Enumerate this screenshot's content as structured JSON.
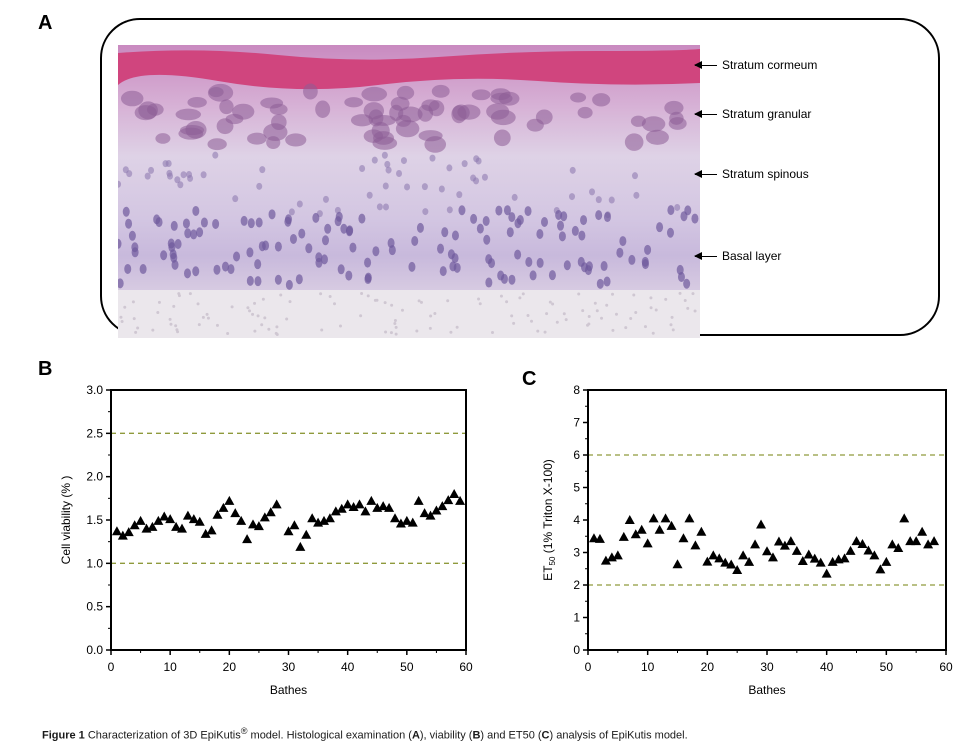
{
  "panel_a": {
    "label": "A",
    "layers": [
      "Stratum cormeum",
      "Stratum granular",
      "Stratum spinous",
      "Basal layer"
    ]
  },
  "caption": {
    "figure": "Figure 1",
    "text1": " Characterization of 3D EpiKutis",
    "reg": "®",
    "text2": " model. Histological examination (",
    "a": "A",
    "text3": "), viability (",
    "b": "B",
    "text4": ") and ET50 (",
    "c": "C",
    "text5": ") analysis of EpiKutis model."
  },
  "colors": {
    "reference_line": "#8f9a3c",
    "marker": "#000000",
    "cornified": "#d0457e"
  },
  "chart_data": [
    {
      "panel": "B",
      "type": "scatter",
      "marker": "triangle",
      "xlabel": "Bathes",
      "ylabel": "Cell viability (% )",
      "xlim": [
        0,
        60
      ],
      "ylim": [
        0,
        3.0
      ],
      "xticks": [
        "0",
        "10",
        "20",
        "30",
        "40",
        "50",
        "60"
      ],
      "yticks": [
        "0.0",
        "0.5",
        "1.0",
        "1.5",
        "2.0",
        "2.5",
        "3.0"
      ],
      "reference_lines": [
        1.0,
        2.5
      ],
      "grid": false,
      "x": [
        1,
        2,
        3,
        4,
        5,
        6,
        7,
        8,
        9,
        10,
        11,
        12,
        13,
        14,
        15,
        16,
        17,
        18,
        19,
        20,
        21,
        22,
        23,
        24,
        25,
        26,
        27,
        28,
        30,
        31,
        32,
        33,
        34,
        35,
        36,
        37,
        38,
        39,
        40,
        41,
        42,
        43,
        44,
        45,
        46,
        47,
        48,
        49,
        50,
        51,
        52,
        53,
        54,
        55,
        56,
        57,
        58,
        59
      ],
      "y": [
        1.37,
        1.32,
        1.36,
        1.44,
        1.49,
        1.4,
        1.42,
        1.49,
        1.54,
        1.51,
        1.42,
        1.4,
        1.55,
        1.51,
        1.48,
        1.34,
        1.38,
        1.56,
        1.64,
        1.72,
        1.58,
        1.49,
        1.28,
        1.45,
        1.43,
        1.53,
        1.59,
        1.68,
        1.37,
        1.44,
        1.19,
        1.33,
        1.52,
        1.47,
        1.49,
        1.52,
        1.6,
        1.63,
        1.68,
        1.65,
        1.68,
        1.6,
        1.72,
        1.64,
        1.66,
        1.64,
        1.52,
        1.46,
        1.49,
        1.47,
        1.72,
        1.58,
        1.55,
        1.61,
        1.66,
        1.73,
        1.8,
        1.72
      ]
    },
    {
      "panel": "C",
      "type": "scatter",
      "marker": "triangle",
      "xlabel": "Bathes",
      "ylabel_main": "ET",
      "ylabel_sub": "50",
      "ylabel_rest": " (1% Triton X-100)",
      "xlim": [
        0,
        60
      ],
      "ylim": [
        0,
        8
      ],
      "xticks": [
        "0",
        "10",
        "20",
        "30",
        "40",
        "50",
        "60"
      ],
      "yticks": [
        "0",
        "1",
        "2",
        "3",
        "4",
        "5",
        "6",
        "7",
        "8"
      ],
      "reference_lines": [
        2,
        6
      ],
      "grid": false,
      "x": [
        1,
        2,
        3,
        4,
        5,
        6,
        7,
        8,
        9,
        10,
        11,
        12,
        13,
        14,
        15,
        16,
        17,
        18,
        19,
        20,
        21,
        22,
        23,
        24,
        25,
        26,
        27,
        28,
        29,
        30,
        31,
        32,
        33,
        34,
        35,
        36,
        37,
        38,
        39,
        40,
        41,
        42,
        43,
        44,
        45,
        46,
        47,
        48,
        49,
        50,
        51,
        52,
        53,
        54,
        55,
        56,
        57,
        58
      ],
      "y": [
        3.44,
        3.42,
        2.75,
        2.85,
        2.91,
        3.48,
        4.0,
        3.56,
        3.7,
        3.28,
        4.05,
        3.7,
        4.05,
        3.82,
        2.64,
        3.44,
        4.05,
        3.22,
        3.64,
        2.72,
        2.91,
        2.82,
        2.69,
        2.63,
        2.46,
        2.91,
        2.71,
        3.25,
        3.86,
        3.04,
        2.85,
        3.34,
        3.21,
        3.35,
        3.05,
        2.74,
        2.94,
        2.81,
        2.69,
        2.35,
        2.71,
        2.79,
        2.82,
        3.05,
        3.35,
        3.26,
        3.06,
        2.91,
        2.48,
        2.71,
        3.25,
        3.14,
        4.05,
        3.35,
        3.35,
        3.64,
        3.25,
        3.35
      ]
    }
  ]
}
